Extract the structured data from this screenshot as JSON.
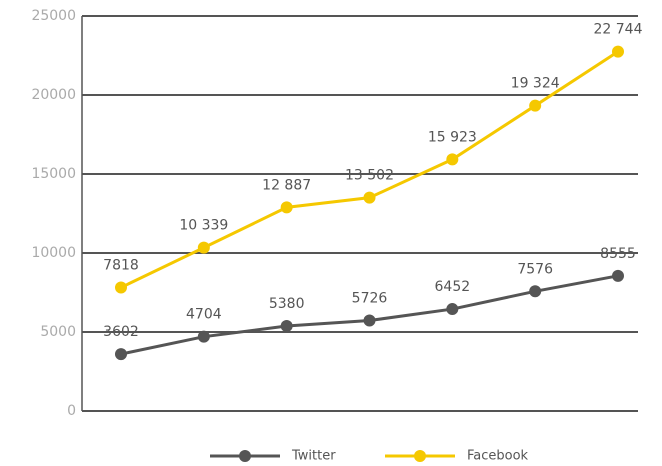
{
  "chart_data": {
    "type": "line",
    "categories": [
      null,
      null,
      null,
      null,
      null,
      null,
      null
    ],
    "series": [
      {
        "name": "Twitter",
        "color": "#555555",
        "values": [
          3602,
          4704,
          5380,
          5726,
          6452,
          7576,
          8555
        ]
      },
      {
        "name": "Facebook",
        "color": "#f5c800",
        "values": [
          7818,
          10339,
          12887,
          13502,
          15923,
          19324,
          22744
        ],
        "value_labels": [
          "7818",
          "10 339",
          "12 887",
          "13 502",
          "15 923",
          "19 324",
          "22 744"
        ]
      }
    ],
    "ylim": [
      0,
      25000
    ],
    "yticks": [
      0,
      5000,
      10000,
      15000,
      20000,
      25000
    ],
    "grid": true
  }
}
